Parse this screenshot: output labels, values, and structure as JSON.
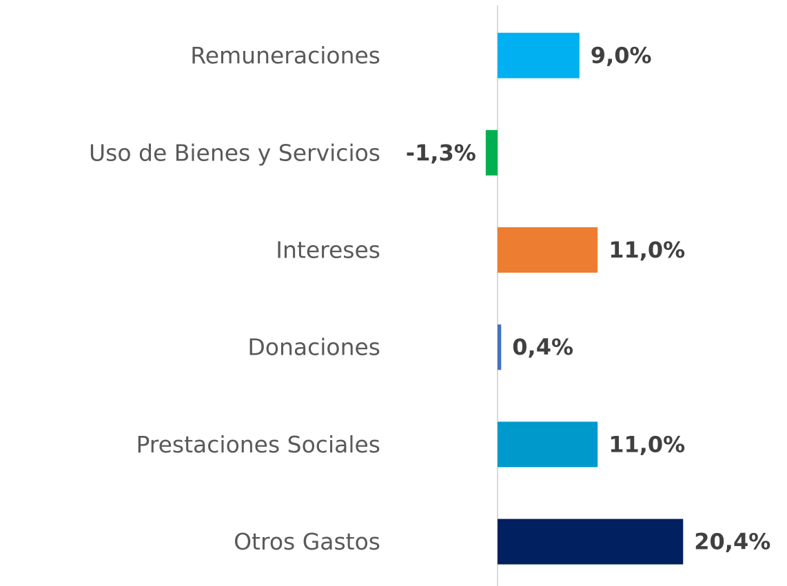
{
  "chart_data": {
    "type": "bar",
    "orientation": "horizontal",
    "categories": [
      "Remuneraciones",
      "Uso de Bienes y Servicios",
      "Intereses",
      "Donaciones",
      "Prestaciones Sociales",
      "Otros Gastos"
    ],
    "values": [
      9.0,
      -1.3,
      11.0,
      0.4,
      11.0,
      20.4
    ],
    "value_labels": [
      "9,0%",
      "-1,3%",
      "11,0%",
      "0,4%",
      "11,0%",
      "20,4%"
    ],
    "colors": [
      "#00b0f0",
      "#00b050",
      "#ed7d31",
      "#4472c4",
      "#0099cc",
      "#002060"
    ]
  }
}
